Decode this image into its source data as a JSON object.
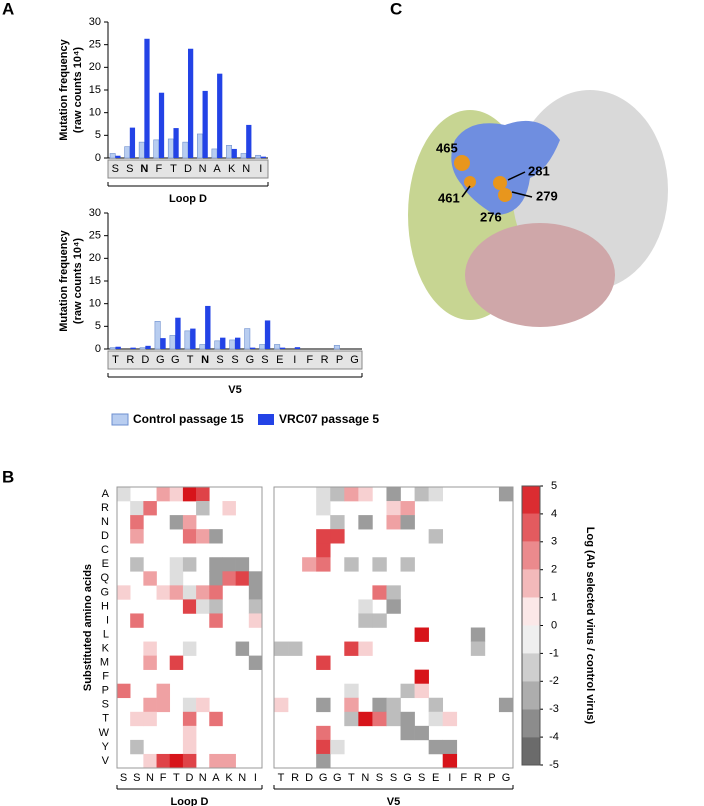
{
  "panel_labels": [
    "A",
    "B",
    "C"
  ],
  "chart_data": [
    {
      "type": "bar",
      "ylabel": [
        "Mutation frequency",
        "(raw counts 10⁴)"
      ],
      "xlabel": "Loop D",
      "categories": [
        "S",
        "S",
        "N",
        "F",
        "T",
        "D",
        "N",
        "A",
        "K",
        "N",
        "I"
      ],
      "emphasized_index": 2,
      "series": [
        {
          "name": "Control passage 15",
          "color": "#b8cdf0",
          "values": [
            1,
            2.5,
            3.5,
            4,
            4.2,
            3.5,
            5.3,
            2,
            2.8,
            1,
            0.6
          ]
        },
        {
          "name": "VRC07 passage 5",
          "color": "#2343e6",
          "values": [
            0.5,
            6.7,
            26.3,
            14.4,
            6.6,
            24.1,
            14.8,
            18.6,
            2,
            7.3,
            0.3
          ]
        }
      ],
      "ylim": [
        0,
        30
      ],
      "yticks": [
        0,
        5,
        10,
        15,
        20,
        25,
        30
      ]
    },
    {
      "type": "bar",
      "ylabel": [
        "Mutation frequency",
        "(raw counts 10⁴)"
      ],
      "xlabel": "V5",
      "categories": [
        "T",
        "R",
        "D",
        "G",
        "G",
        "T",
        "N",
        "S",
        "S",
        "G",
        "S",
        "E",
        "I",
        "F",
        "R",
        "P",
        "G"
      ],
      "emphasized_index": 6,
      "series": [
        {
          "name": "Control passage 15",
          "color": "#b8cdf0",
          "values": [
            0.3,
            0,
            0.3,
            6.1,
            3,
            4,
            1,
            1.8,
            2,
            4.5,
            1,
            1,
            0,
            0,
            0,
            0.8,
            0
          ]
        },
        {
          "name": "VRC07 passage 5",
          "color": "#2343e6",
          "values": [
            0.5,
            0.3,
            0.7,
            2.4,
            6.9,
            4.5,
            9.5,
            2.5,
            2.5,
            0.3,
            6.3,
            0.3,
            0.4,
            0,
            0,
            0,
            0
          ]
        }
      ],
      "ylim": [
        0,
        30
      ],
      "yticks": [
        0,
        5,
        10,
        15,
        20,
        25,
        30
      ]
    },
    {
      "type": "heatmap",
      "ylabel": "Substituted amino acids",
      "colorbar_label": "Log (Ab selected virus / control virus)",
      "y_categories": [
        "A",
        "R",
        "N",
        "D",
        "C",
        "E",
        "Q",
        "G",
        "H",
        "I",
        "L",
        "K",
        "M",
        "F",
        "P",
        "S",
        "T",
        "W",
        "Y",
        "V"
      ],
      "zlim": [
        -5,
        5
      ],
      "zticks": [
        5,
        4,
        3,
        2,
        1,
        0,
        -1,
        -2,
        -3,
        -4,
        -5
      ],
      "panels": [
        {
          "xlabel": "Loop D",
          "categories": [
            "S",
            "S",
            "N",
            "F",
            "T",
            "D",
            "N",
            "A",
            "K",
            "N",
            "I"
          ],
          "z": [
            [
              -1,
              null,
              null,
              2,
              1,
              5,
              4,
              null,
              null,
              null,
              null
            ],
            [
              null,
              -1,
              3,
              null,
              null,
              null,
              -2,
              null,
              1,
              null,
              null
            ],
            [
              null,
              3,
              null,
              null,
              -3,
              2,
              null,
              null,
              null,
              null,
              null
            ],
            [
              null,
              2,
              null,
              null,
              null,
              3,
              2,
              -3,
              null,
              null,
              null
            ],
            [
              null,
              null,
              null,
              null,
              null,
              null,
              null,
              null,
              null,
              null,
              null
            ],
            [
              null,
              -2,
              null,
              null,
              -1,
              -2,
              null,
              -3,
              -3,
              -3,
              null
            ],
            [
              null,
              null,
              2,
              null,
              -1,
              null,
              null,
              -3,
              3,
              4,
              -3
            ],
            [
              1,
              null,
              null,
              1,
              2,
              -1,
              2,
              3,
              null,
              null,
              -3
            ],
            [
              null,
              null,
              null,
              null,
              null,
              4,
              -1,
              -2,
              null,
              null,
              -2
            ],
            [
              null,
              3,
              null,
              null,
              null,
              null,
              null,
              3,
              null,
              null,
              1
            ],
            [
              null,
              null,
              null,
              null,
              null,
              null,
              null,
              null,
              null,
              null,
              null
            ],
            [
              null,
              null,
              1,
              null,
              null,
              -1,
              null,
              null,
              null,
              -3,
              null
            ],
            [
              null,
              null,
              2,
              null,
              4,
              null,
              null,
              null,
              null,
              null,
              -3
            ],
            [
              null,
              null,
              null,
              null,
              null,
              null,
              null,
              null,
              null,
              null,
              null
            ],
            [
              3,
              null,
              null,
              2,
              null,
              null,
              null,
              null,
              null,
              null,
              null
            ],
            [
              null,
              null,
              2,
              2,
              null,
              -1,
              1,
              null,
              null,
              null,
              null
            ],
            [
              null,
              1,
              1,
              null,
              null,
              3,
              null,
              3,
              null,
              null,
              null
            ],
            [
              null,
              null,
              null,
              null,
              null,
              1,
              null,
              null,
              null,
              null,
              null
            ],
            [
              null,
              -2,
              null,
              null,
              null,
              1,
              null,
              null,
              null,
              null,
              null
            ],
            [
              null,
              null,
              1,
              4,
              5,
              4,
              null,
              2,
              2,
              null,
              null
            ]
          ]
        },
        {
          "xlabel": "V5",
          "categories": [
            "T",
            "R",
            "D",
            "G",
            "G",
            "T",
            "N",
            "S",
            "S",
            "G",
            "S",
            "E",
            "I",
            "F",
            "R",
            "P",
            "G"
          ],
          "z": [
            [
              null,
              null,
              null,
              -1,
              -2,
              2,
              1,
              null,
              -3,
              null,
              -2,
              -1,
              null,
              null,
              null,
              null,
              -3
            ],
            [
              null,
              null,
              null,
              -1,
              null,
              null,
              null,
              null,
              1,
              2,
              null,
              null,
              null,
              null,
              null,
              null,
              null
            ],
            [
              null,
              null,
              null,
              null,
              -2,
              null,
              -3,
              null,
              2,
              -3,
              null,
              null,
              null,
              null,
              null,
              null,
              null
            ],
            [
              null,
              null,
              null,
              4,
              4,
              null,
              null,
              null,
              null,
              null,
              null,
              -2,
              null,
              null,
              null,
              null,
              null
            ],
            [
              null,
              null,
              null,
              4,
              null,
              null,
              null,
              null,
              null,
              null,
              null,
              null,
              null,
              null,
              null,
              null,
              null
            ],
            [
              null,
              null,
              2,
              3,
              null,
              -2,
              null,
              -2,
              null,
              -2,
              null,
              null,
              null,
              null,
              null,
              null,
              null
            ],
            [
              null,
              null,
              null,
              null,
              null,
              null,
              null,
              null,
              null,
              null,
              null,
              null,
              null,
              null,
              null,
              null,
              null
            ],
            [
              null,
              null,
              null,
              null,
              null,
              null,
              null,
              3,
              -2,
              null,
              null,
              null,
              null,
              null,
              null,
              null,
              null
            ],
            [
              null,
              null,
              null,
              null,
              null,
              null,
              -1,
              null,
              -3,
              null,
              null,
              null,
              null,
              null,
              null,
              null,
              null
            ],
            [
              null,
              null,
              null,
              null,
              null,
              null,
              -2,
              -2,
              null,
              null,
              null,
              null,
              null,
              null,
              null,
              null,
              null
            ],
            [
              null,
              null,
              null,
              null,
              null,
              null,
              null,
              null,
              null,
              null,
              5,
              null,
              null,
              null,
              -3,
              null,
              null
            ],
            [
              -2,
              -2,
              null,
              null,
              null,
              4,
              1,
              null,
              null,
              null,
              null,
              null,
              null,
              null,
              -2,
              null,
              null
            ],
            [
              null,
              null,
              null,
              4,
              null,
              null,
              null,
              null,
              null,
              null,
              null,
              null,
              null,
              null,
              null,
              null,
              null
            ],
            [
              null,
              null,
              null,
              null,
              null,
              null,
              null,
              null,
              null,
              null,
              5,
              null,
              null,
              null,
              null,
              null,
              null
            ],
            [
              null,
              null,
              null,
              null,
              null,
              -1,
              null,
              null,
              null,
              -2,
              1,
              null,
              null,
              null,
              null,
              null,
              null
            ],
            [
              1,
              null,
              null,
              -3,
              null,
              2,
              null,
              -3,
              -2,
              null,
              null,
              -2,
              null,
              null,
              null,
              null,
              -3
            ],
            [
              null,
              null,
              null,
              null,
              null,
              -2,
              5,
              3,
              -2,
              -3,
              null,
              -1,
              1,
              null,
              null,
              null,
              null
            ],
            [
              null,
              null,
              null,
              3,
              null,
              null,
              null,
              null,
              null,
              -3,
              -3,
              null,
              null,
              null,
              null,
              null,
              null
            ],
            [
              null,
              null,
              null,
              4,
              -1,
              null,
              null,
              null,
              null,
              null,
              null,
              -3,
              -3,
              null,
              null,
              null,
              null
            ],
            [
              null,
              null,
              null,
              -3,
              null,
              null,
              null,
              null,
              null,
              null,
              null,
              null,
              5,
              null,
              null,
              null,
              null
            ]
          ]
        }
      ]
    }
  ],
  "structure": {
    "labels": [
      "465",
      "461",
      "281",
      "279",
      "276"
    ]
  }
}
